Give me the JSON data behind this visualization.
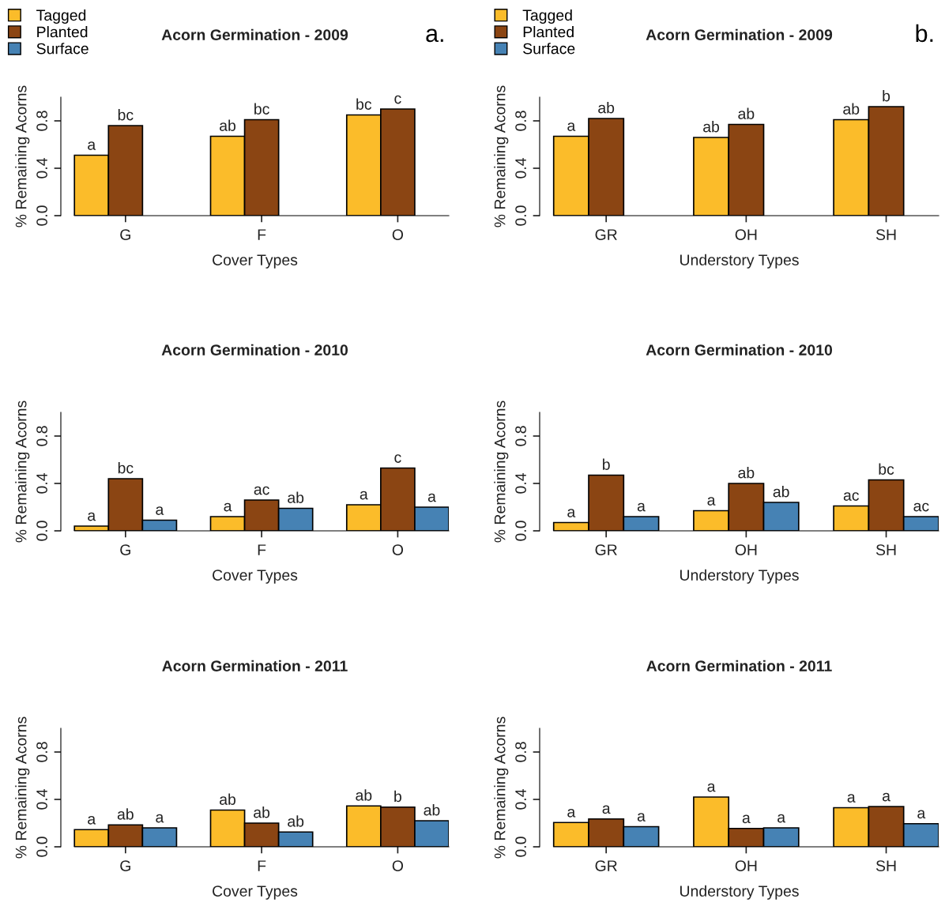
{
  "chart_data": [
    {
      "type": "bar",
      "title": "Acorn Germination - 2009",
      "xlabel": "Cover Types",
      "ylabel": "% Remaining Acorns",
      "categories": [
        "G",
        "F",
        "O"
      ],
      "ylim": [
        0,
        1
      ],
      "yticks": [
        {
          "value": 0,
          "label": "0.0"
        },
        {
          "value": 0.4,
          "label": "0.4"
        },
        {
          "value": 0.8,
          "label": "0.8"
        }
      ],
      "legend": "top left",
      "annotations": [
        "a."
      ],
      "series": [
        {
          "name": "Tagged",
          "color": "#fbbc2a",
          "values": [
            0.51,
            0.67,
            0.85
          ],
          "value_labels": [
            "a",
            "ab",
            "bc"
          ]
        },
        {
          "name": "Planted",
          "color": "#8b4513",
          "values": [
            0.76,
            0.81,
            0.9
          ],
          "value_labels": [
            "bc",
            "bc",
            "c"
          ]
        },
        {
          "name": "Surface",
          "color": "#4682b4",
          "values": [
            null,
            null,
            null
          ]
        }
      ]
    },
    {
      "type": "bar",
      "title": "Acorn Germination - 2009",
      "xlabel": "Understory Types",
      "ylabel": "% Remaining Acorns",
      "categories": [
        "GR",
        "OH",
        "SH"
      ],
      "ylim": [
        0,
        1
      ],
      "yticks": [
        {
          "value": 0,
          "label": "0.0"
        },
        {
          "value": 0.4,
          "label": "0.4"
        },
        {
          "value": 0.8,
          "label": "0.8"
        }
      ],
      "legend": "top left",
      "annotations": [
        "b."
      ],
      "series": [
        {
          "name": "Tagged",
          "color": "#fbbc2a",
          "values": [
            0.67,
            0.66,
            0.81
          ],
          "value_labels": [
            "a",
            "ab",
            "ab"
          ]
        },
        {
          "name": "Planted",
          "color": "#8b4513",
          "values": [
            0.82,
            0.77,
            0.92
          ],
          "value_labels": [
            "ab",
            "ab",
            "b"
          ]
        },
        {
          "name": "Surface",
          "color": "#4682b4",
          "values": [
            null,
            null,
            null
          ]
        }
      ]
    },
    {
      "type": "bar",
      "title": "Acorn Germination - 2010",
      "xlabel": "Cover Types",
      "ylabel": "% Remaining Acorns",
      "categories": [
        "G",
        "F",
        "O"
      ],
      "ylim": [
        0,
        1
      ],
      "yticks": [
        {
          "value": 0,
          "label": "0.0"
        },
        {
          "value": 0.4,
          "label": "0.4"
        },
        {
          "value": 0.8,
          "label": "0.8"
        }
      ],
      "series": [
        {
          "color": "#fbbc2a",
          "values": [
            0.04,
            0.12,
            0.22
          ],
          "value_labels": [
            "a",
            "a",
            "a"
          ]
        },
        {
          "color": "#8b4513",
          "values": [
            0.44,
            0.26,
            0.53
          ],
          "value_labels": [
            "bc",
            "ac",
            "c"
          ]
        },
        {
          "color": "#4682b4",
          "values": [
            0.09,
            0.19,
            0.2
          ],
          "value_labels": [
            "a",
            "ab",
            "a"
          ]
        }
      ]
    },
    {
      "type": "bar",
      "title": "Acorn Germination - 2010",
      "xlabel": "Understory Types",
      "ylabel": "% Remaining Acorns",
      "categories": [
        "GR",
        "OH",
        "SH"
      ],
      "ylim": [
        0,
        1
      ],
      "yticks": [
        {
          "value": 0,
          "label": "0.0"
        },
        {
          "value": 0.4,
          "label": "0.4"
        },
        {
          "value": 0.8,
          "label": "0.8"
        }
      ],
      "series": [
        {
          "color": "#fbbc2a",
          "values": [
            0.07,
            0.17,
            0.21
          ],
          "value_labels": [
            "a",
            "a",
            "ac"
          ]
        },
        {
          "color": "#8b4513",
          "values": [
            0.47,
            0.4,
            0.43
          ],
          "value_labels": [
            "b",
            "ab",
            "bc"
          ]
        },
        {
          "color": "#4682b4",
          "values": [
            0.12,
            0.24,
            0.12
          ],
          "value_labels": [
            "a",
            "ab",
            "ac"
          ]
        }
      ]
    },
    {
      "type": "bar",
      "title": "Acorn Germination - 2011",
      "xlabel": "Cover Types",
      "ylabel": "% Remaining Acorns",
      "categories": [
        "G",
        "F",
        "O"
      ],
      "ylim": [
        0,
        1
      ],
      "yticks": [
        {
          "value": 0,
          "label": "0.0"
        },
        {
          "value": 0.4,
          "label": "0.4"
        },
        {
          "value": 0.8,
          "label": "0.8"
        }
      ],
      "series": [
        {
          "color": "#fbbc2a",
          "values": [
            0.145,
            0.31,
            0.345
          ],
          "value_labels": [
            "a",
            "ab",
            "ab"
          ]
        },
        {
          "color": "#8b4513",
          "values": [
            0.185,
            0.2,
            0.335
          ],
          "value_labels": [
            "ab",
            "ab",
            "b"
          ]
        },
        {
          "color": "#4682b4",
          "values": [
            0.16,
            0.125,
            0.22
          ],
          "value_labels": [
            "a",
            "ab",
            "ab"
          ]
        }
      ]
    },
    {
      "type": "bar",
      "title": "Acorn Germination - 2011",
      "xlabel": "Understory Types",
      "ylabel": "% Remaining Acorns",
      "categories": [
        "GR",
        "OH",
        "SH"
      ],
      "ylim": [
        0,
        1
      ],
      "yticks": [
        {
          "value": 0,
          "label": "0.0"
        },
        {
          "value": 0.4,
          "label": "0.4"
        },
        {
          "value": 0.8,
          "label": "0.8"
        }
      ],
      "series": [
        {
          "color": "#fbbc2a",
          "values": [
            0.205,
            0.42,
            0.33
          ],
          "value_labels": [
            "a",
            "a",
            "a"
          ]
        },
        {
          "color": "#8b4513",
          "values": [
            0.235,
            0.155,
            0.34
          ],
          "value_labels": [
            "a",
            "a",
            "a"
          ]
        },
        {
          "color": "#4682b4",
          "values": [
            0.17,
            0.16,
            0.195
          ],
          "value_labels": [
            "a",
            "a",
            "a"
          ]
        }
      ]
    }
  ]
}
